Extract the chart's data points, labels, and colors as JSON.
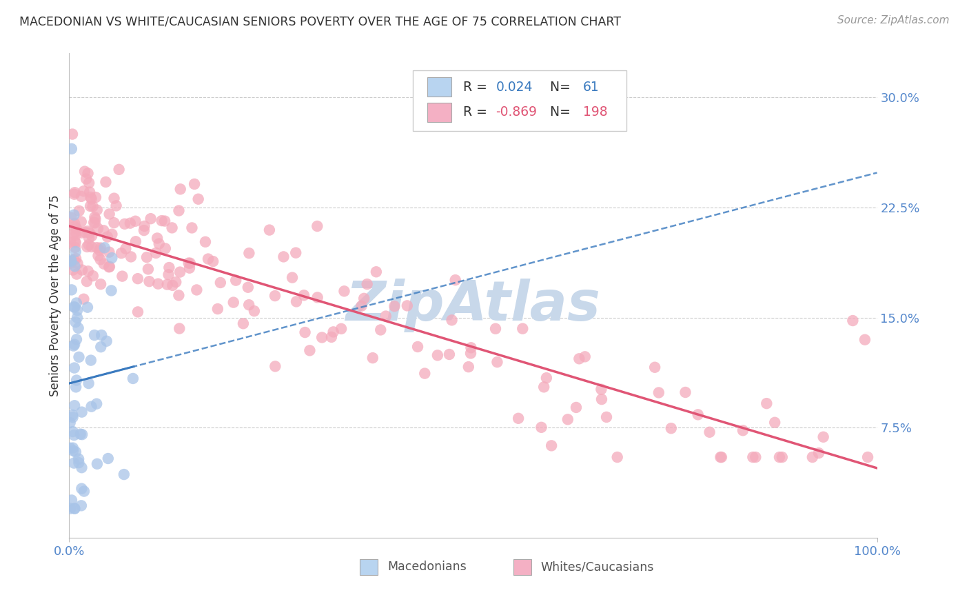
{
  "title": "MACEDONIAN VS WHITE/CAUCASIAN SENIORS POVERTY OVER THE AGE OF 75 CORRELATION CHART",
  "source": "Source: ZipAtlas.com",
  "ylabel": "Seniors Poverty Over the Age of 75",
  "ytick_values": [
    0.075,
    0.15,
    0.225,
    0.3
  ],
  "ytick_labels": [
    "7.5%",
    "15.0%",
    "22.5%",
    "30.0%"
  ],
  "xlim": [
    0.0,
    1.0
  ],
  "ylim": [
    0.0,
    0.33
  ],
  "macedonian_R": "0.024",
  "macedonian_N": "61",
  "white_R": "-0.869",
  "white_N": "198",
  "mac_dot_color": "#a8c4e8",
  "mac_line_color": "#3a7abf",
  "white_dot_color": "#f4aabb",
  "white_line_color": "#e05575",
  "watermark_color": "#c8d8ea",
  "background_color": "#ffffff",
  "grid_color": "#cccccc",
  "tick_label_color": "#5588cc",
  "legend_border_color": "#cccccc",
  "legend_mac_fill": "#b8d4f0",
  "legend_white_fill": "#f4b0c4",
  "bottom_legend_mac_fill": "#b8d4f0",
  "bottom_legend_white_fill": "#f4b0c4",
  "text_color": "#333333",
  "source_color": "#999999"
}
